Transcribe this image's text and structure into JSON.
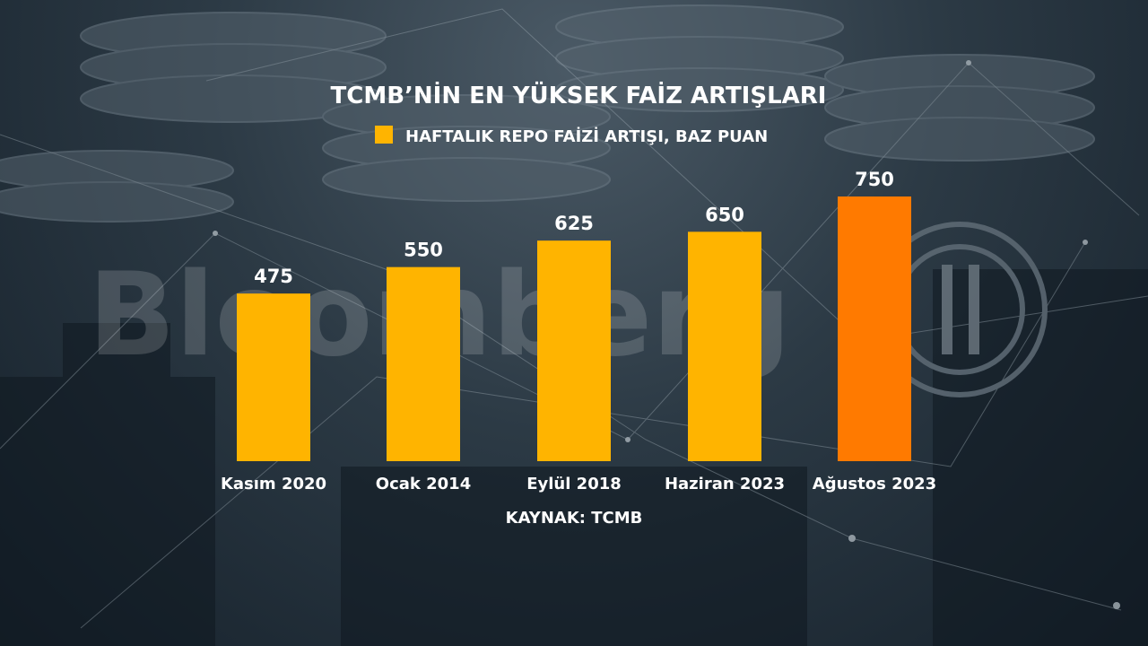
{
  "chart_data": {
    "type": "bar",
    "title": "TCMB’NİN EN YÜKSEK FAİZ ARTIŞLARI",
    "legend": "HAFTALIK REPO FAİZİ ARTIŞI, BAZ PUAN",
    "source": "KAYNAK: TCMB",
    "categories": [
      "Kasım 2020",
      "Ocak 2014",
      "Eylül 2018",
      "Haziran 2023",
      "Ağustos 2023"
    ],
    "values": [
      475,
      550,
      625,
      650,
      750
    ],
    "bar_colors": [
      "#ffb400",
      "#ffb400",
      "#ffb400",
      "#ffb400",
      "#ff7a00"
    ],
    "legend_color": "#ffb400",
    "ylim": [
      0,
      750
    ],
    "grid": false,
    "legend_position": "top-center"
  },
  "watermark": "Bloomberg"
}
